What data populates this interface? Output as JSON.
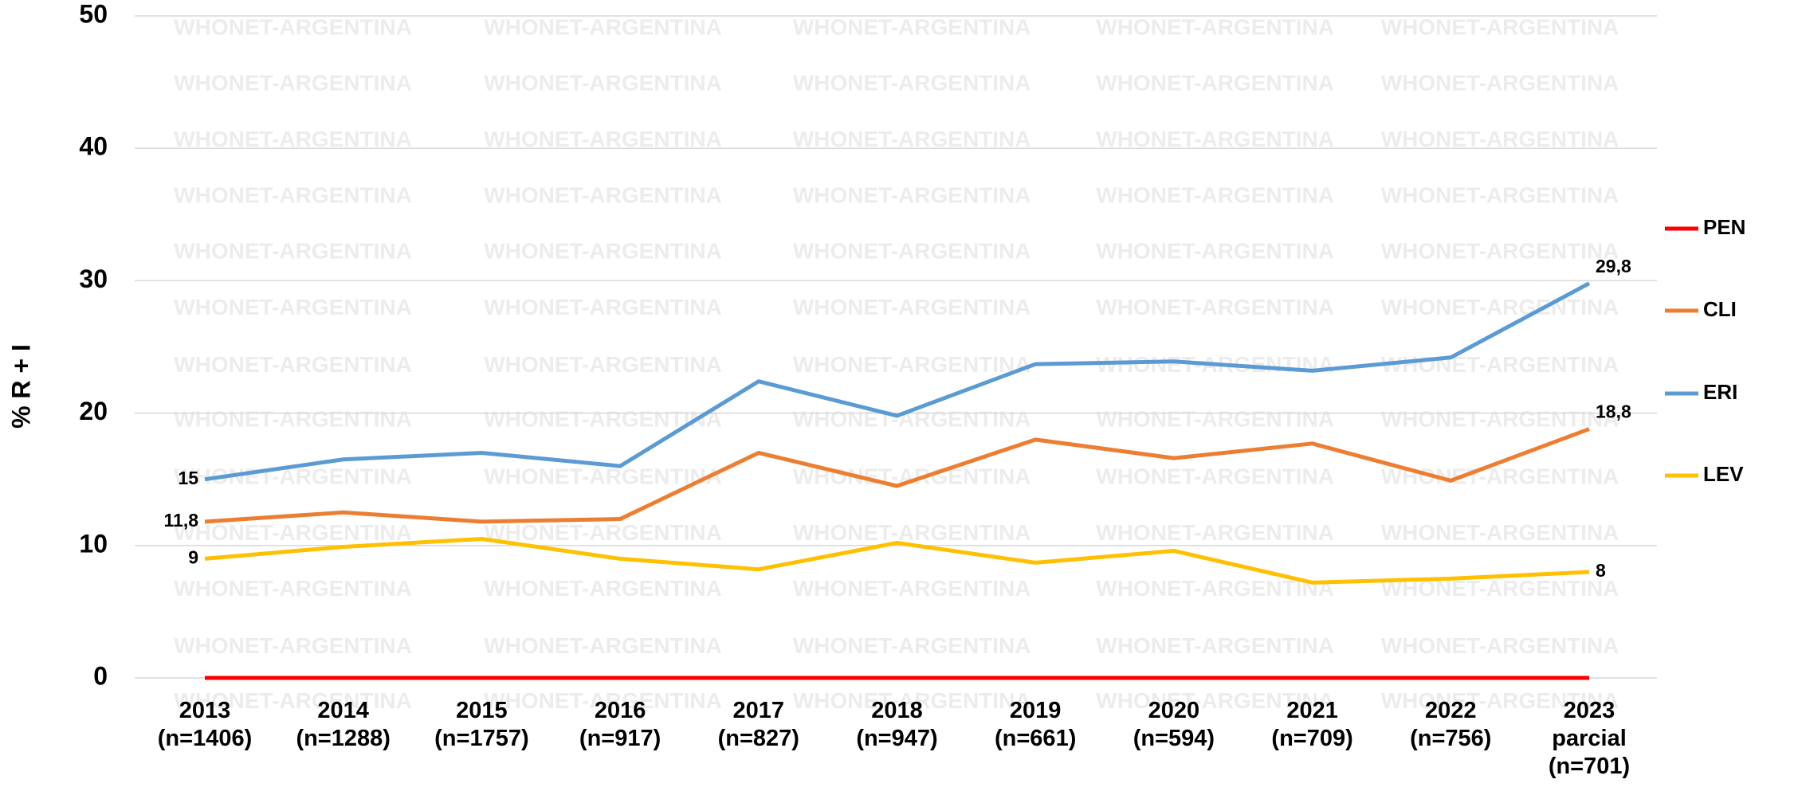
{
  "chart_data": {
    "type": "line",
    "y_label": "% R + I",
    "watermark": "WHONET-ARGENTINA",
    "categories": [
      "2013\n(n=1406)",
      "2014\n(n=1288)",
      "2015\n(n=1757)",
      "2016\n(n=917)",
      "2017\n(n=827)",
      "2018\n(n=947)",
      "2019\n(n=661)",
      "2020\n(n=594)",
      "2021\n(n=709)",
      "2022\n(n=756)",
      "2023\nparcial\n(n=701)"
    ],
    "ylim": [
      0,
      50
    ],
    "yticks": [
      0,
      10,
      20,
      30,
      40,
      50
    ],
    "grid": true,
    "legend": "right",
    "series": [
      {
        "name": "PEN",
        "color": "#ff0000",
        "values": [
          0,
          0,
          0,
          0,
          0,
          0,
          0,
          0,
          0,
          0,
          0
        ]
      },
      {
        "name": "CLI",
        "color": "#ed7d31",
        "values": [
          11.8,
          12.5,
          11.8,
          12.0,
          17.0,
          14.5,
          18.0,
          16.6,
          17.7,
          14.9,
          18.8
        ],
        "value_labels": [
          "11,8",
          null,
          null,
          null,
          null,
          null,
          null,
          null,
          null,
          null,
          "18,8"
        ]
      },
      {
        "name": "ERI",
        "color": "#5b9bd5",
        "values": [
          15,
          16.5,
          17.0,
          16.0,
          22.4,
          19.8,
          23.7,
          23.9,
          23.2,
          24.2,
          29.8
        ],
        "value_labels": [
          "15",
          null,
          null,
          null,
          null,
          null,
          null,
          null,
          null,
          null,
          "29,8"
        ]
      },
      {
        "name": "LEV",
        "color": "#ffc000",
        "values": [
          9,
          9.9,
          10.5,
          9.0,
          8.2,
          10.2,
          8.7,
          9.6,
          7.2,
          7.5,
          8
        ],
        "value_labels": [
          "9",
          null,
          null,
          null,
          null,
          null,
          null,
          null,
          null,
          null,
          "8"
        ]
      }
    ]
  }
}
